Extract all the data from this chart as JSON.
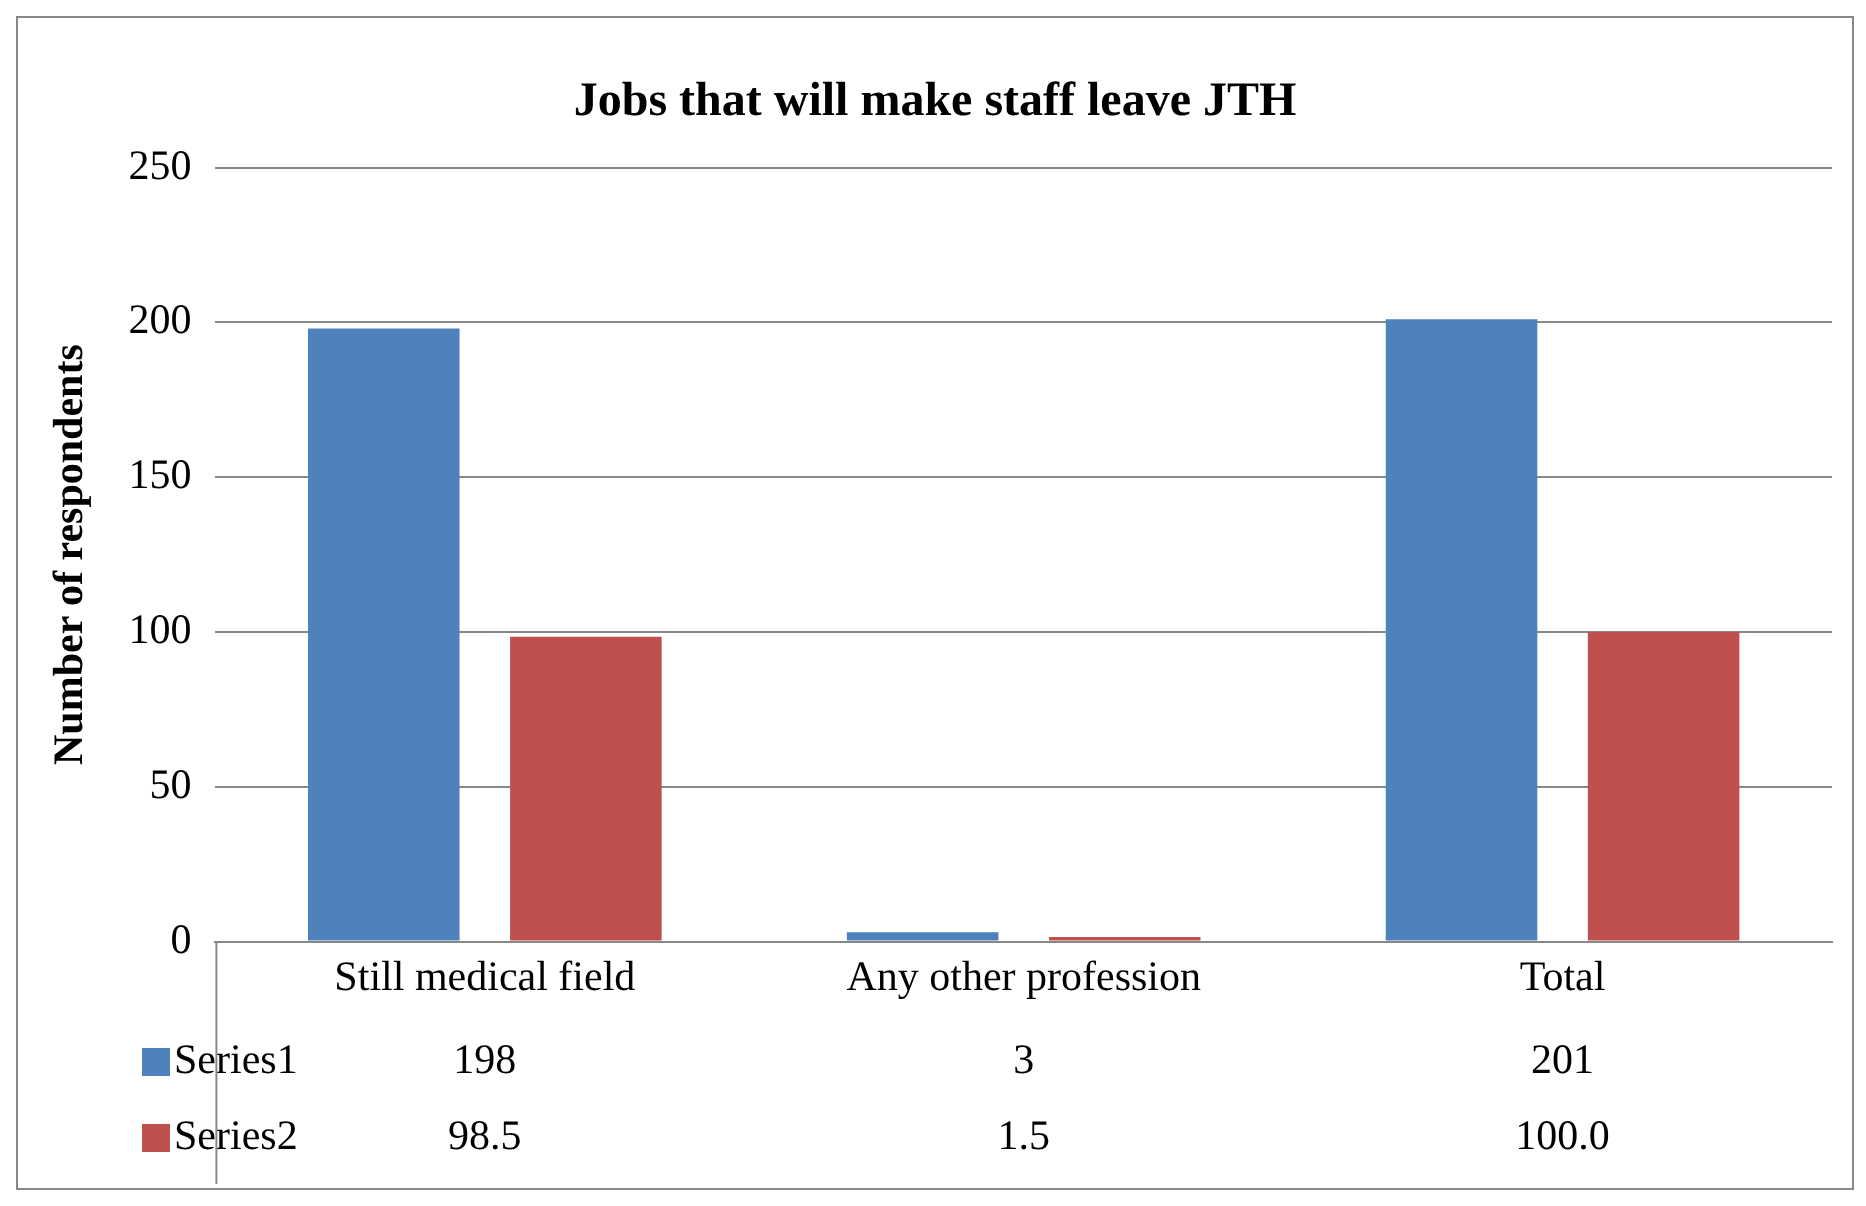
{
  "chart_data": {
    "type": "bar",
    "title": "Jobs that will make staff leave JTH",
    "ylabel": "Number of respondents",
    "categories": [
      "Still medical field",
      "Any other profession",
      "Total"
    ],
    "series": [
      {
        "name": "Series1",
        "color": "#4f81bd",
        "values": [
          198,
          3,
          201
        ],
        "value_labels": [
          "198",
          "3",
          "201"
        ]
      },
      {
        "name": "Series2",
        "color": "#c0504d",
        "values": [
          98.5,
          1.5,
          100.0
        ],
        "value_labels": [
          "98.5",
          "1.5",
          "100.0"
        ]
      }
    ],
    "ylim": [
      0,
      250
    ],
    "yticks": [
      0,
      50,
      100,
      150,
      200,
      250
    ],
    "grid": "y",
    "legend": "bottom"
  }
}
